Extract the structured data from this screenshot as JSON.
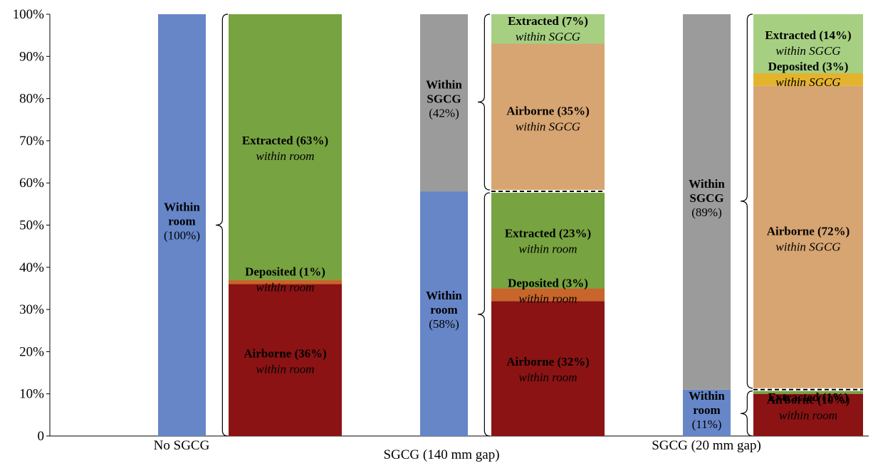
{
  "chart_data": {
    "type": "bar",
    "stacked": true,
    "ylim": [
      0,
      100
    ],
    "yticks": [
      "0",
      "10%",
      "20%",
      "30%",
      "40%",
      "50%",
      "60%",
      "70%",
      "80%",
      "90%",
      "100%"
    ],
    "categories": [
      "No SGCG",
      "SGCG (140 mm gap)",
      "SGCG (20 mm gap)"
    ],
    "colors": {
      "within_room": "#6686c8",
      "within_sgcg": "#9b9b9b",
      "extracted_room": "#77a340",
      "deposited_room": "#c8652a",
      "airborne_room": "#8b1314",
      "extracted_sgcg": "#a6cf82",
      "deposited_sgcg": "#e4b32d",
      "airborne_sgcg": "#d7a572"
    },
    "groups": [
      {
        "summary": [
          {
            "key": "within_room",
            "value": 100,
            "bold": "Within room",
            "pct": "(100%)"
          }
        ],
        "detail": [
          {
            "key": "airborne_room",
            "value": 36,
            "bold": "Airborne (36%)",
            "italic": "within room"
          },
          {
            "key": "deposited_room",
            "value": 1,
            "bold": "Deposited (1%)",
            "italic": "within room"
          },
          {
            "key": "extracted_room",
            "value": 63,
            "bold": "Extracted (63%)",
            "italic": "within room"
          }
        ]
      },
      {
        "summary": [
          {
            "key": "within_room",
            "value": 58,
            "bold": "Within room",
            "pct": "(58%)"
          },
          {
            "key": "within_sgcg",
            "value": 42,
            "bold": "Within SGCG",
            "pct": "(42%)"
          }
        ],
        "detail": [
          {
            "key": "airborne_room",
            "value": 32,
            "bold": "Airborne (32%)",
            "italic": "within room"
          },
          {
            "key": "deposited_room",
            "value": 3,
            "bold": "Deposited (3%)",
            "italic": "within room"
          },
          {
            "key": "extracted_room",
            "value": 23,
            "bold": "Extracted (23%)",
            "italic": "within room"
          },
          {
            "key": "airborne_sgcg",
            "value": 35,
            "bold": "Airborne (35%)",
            "italic": "within SGCG"
          },
          {
            "key": "extracted_sgcg",
            "value": 7,
            "bold": "Extracted (7%)",
            "italic": "within SGCG"
          }
        ]
      },
      {
        "summary": [
          {
            "key": "within_room",
            "value": 11,
            "bold": "Within room",
            "pct": "(11%)"
          },
          {
            "key": "within_sgcg",
            "value": 89,
            "bold": "Within SGCG",
            "pct": "(89%)"
          }
        ],
        "detail": [
          {
            "key": "airborne_room",
            "value": 10,
            "bold": "Airborne (10%)",
            "italic": "within room"
          },
          {
            "key": "extracted_room",
            "value": 1,
            "bold": "Extracted (1%)",
            "italic": ""
          },
          {
            "key": "airborne_sgcg",
            "value": 72,
            "bold": "Airborne (72%)",
            "italic": "within SGCG"
          },
          {
            "key": "deposited_sgcg",
            "value": 3,
            "bold": "Deposited (3%)",
            "italic": "within SGCG"
          },
          {
            "key": "extracted_sgcg",
            "value": 14,
            "bold": "Extracted (14%)",
            "italic": "within SGCG"
          }
        ]
      }
    ]
  }
}
